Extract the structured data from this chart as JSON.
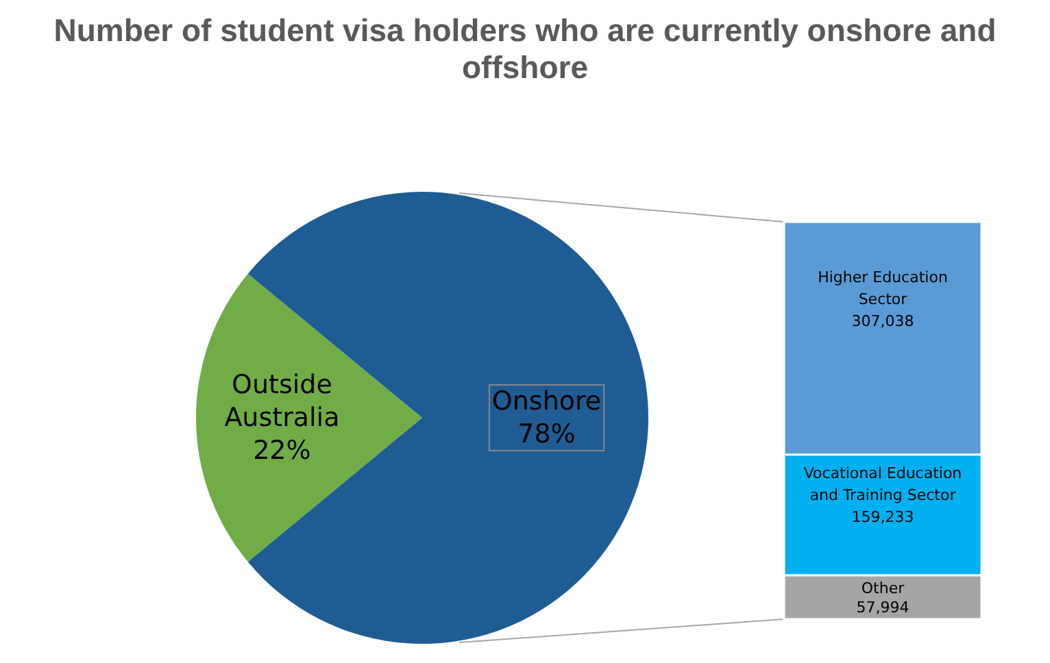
{
  "chart_data": [
    {
      "type": "pie",
      "title": "Number of student  visa holders who are currently onshore and offshore",
      "categories": [
        "Outside Australia",
        "Onshore"
      ],
      "values": [
        22,
        78
      ],
      "colors": [
        "#70ad47",
        "#1f5c93"
      ],
      "value_labels": [
        "22%",
        "78%"
      ]
    },
    {
      "type": "bar",
      "stacked": true,
      "categories": [
        null
      ],
      "series": [
        {
          "name": "Other",
          "color": "#a5a5a5",
          "values": [
            57994
          ],
          "value_labels": [
            "57,994"
          ]
        },
        {
          "name": "Vocational Education and Training Sector",
          "color": "#00b0f0",
          "values": [
            159233
          ],
          "value_labels": [
            "159,233"
          ]
        },
        {
          "name": "Higher Education Sector",
          "color": "#5b9bd5",
          "values": [
            307038
          ],
          "value_labels": [
            "307,038"
          ]
        }
      ]
    }
  ]
}
